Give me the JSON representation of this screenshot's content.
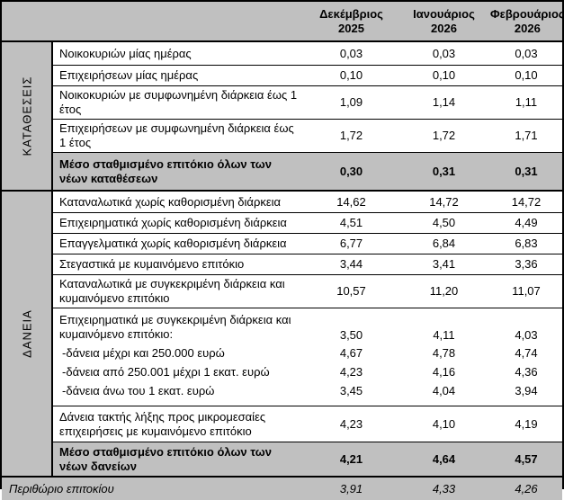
{
  "colors": {
    "band_gray": "#c0c0c0",
    "border": "#000000",
    "text": "#000000"
  },
  "header": {
    "columns": [
      "Δεκέμβριος\n2025",
      "Ιανουάριος\n2026",
      "Φεβρουάριος\n2026"
    ]
  },
  "sections": [
    {
      "label": "ΚΑΤΑΘΕΣΕΙΣ",
      "rows": [
        {
          "label": "Νοικοκυριών μίας ημέρας",
          "values": [
            "0,03",
            "0,03",
            "0,03"
          ]
        },
        {
          "label": "Επιχειρήσεων μίας ημέρας",
          "values": [
            "0,10",
            "0,10",
            "0,10"
          ]
        },
        {
          "label": "Νοικοκυριών με συμφωνημένη διάρκεια έως 1 έτος",
          "values": [
            "1,09",
            "1,14",
            "1,11"
          ]
        },
        {
          "label": "Επιχειρήσεων με συμφωνημένη διάρκεια έως 1 έτος",
          "values": [
            "1,72",
            "1,72",
            "1,71"
          ]
        },
        {
          "label": "Μέσο σταθμισμένο επιτόκιο όλων των νέων καταθέσεων",
          "values": [
            "0,30",
            "0,31",
            "0,31"
          ],
          "emphasis": "bold-gray"
        }
      ]
    },
    {
      "label": "ΔΑΝΕΙΑ",
      "rows": [
        {
          "label": "Καταναλωτικά χωρίς καθορισμένη διάρκεια",
          "values": [
            "14,62",
            "14,72",
            "14,72"
          ]
        },
        {
          "label": "Επιχειρηματικά χωρίς καθορισμένη διάρκεια",
          "values": [
            "4,51",
            "4,50",
            "4,49"
          ]
        },
        {
          "label": "Επαγγελματικά χωρίς καθορισμένη διάρκεια",
          "values": [
            "6,77",
            "6,84",
            "6,83"
          ]
        },
        {
          "label": "Στεγαστικά με κυμαινόμενο επιτόκιο",
          "values": [
            "3,44",
            "3,41",
            "3,36"
          ]
        },
        {
          "label": "Καταναλωτικά με συγκεκριμένη διάρκεια και κυμαινόμενο επιτόκιο",
          "values": [
            "10,57",
            "11,20",
            "11,07"
          ]
        },
        {
          "label": "Επιχειρηματικά με συγκεκριμένη διάρκεια και κυμαινόμενο επιτόκιο:",
          "values": [
            "3,50",
            "4,11",
            "4,03"
          ],
          "sub_rows": [
            {
              "label": "-δάνεια μέχρι και 250.000 ευρώ",
              "values": [
                "4,67",
                "4,78",
                "4,74"
              ]
            },
            {
              "label": "-δάνεια από 250.001 μέχρι 1 εκατ. ευρώ",
              "values": [
                "4,23",
                "4,16",
                "4,36"
              ]
            },
            {
              "label": "-δάνεια άνω του 1 εκατ. ευρώ",
              "values": [
                "3,45",
                "4,04",
                "3,94"
              ]
            }
          ]
        },
        {
          "label": "Δάνεια τακτής λήξης προς μικρομεσαίες επιχειρήσεις με κυμαινόμενο επιτόκιο",
          "values": [
            "4,23",
            "4,10",
            "4,19"
          ]
        },
        {
          "label": "Μέσο σταθμισμένο επιτόκιο όλων των νέων δανείων",
          "values": [
            "4,21",
            "4,64",
            "4,57"
          ],
          "emphasis": "bold-gray"
        }
      ]
    }
  ],
  "footer": {
    "label": "Περιθώριο επιτοκίου",
    "values": [
      "3,91",
      "4,33",
      "4,26"
    ]
  }
}
